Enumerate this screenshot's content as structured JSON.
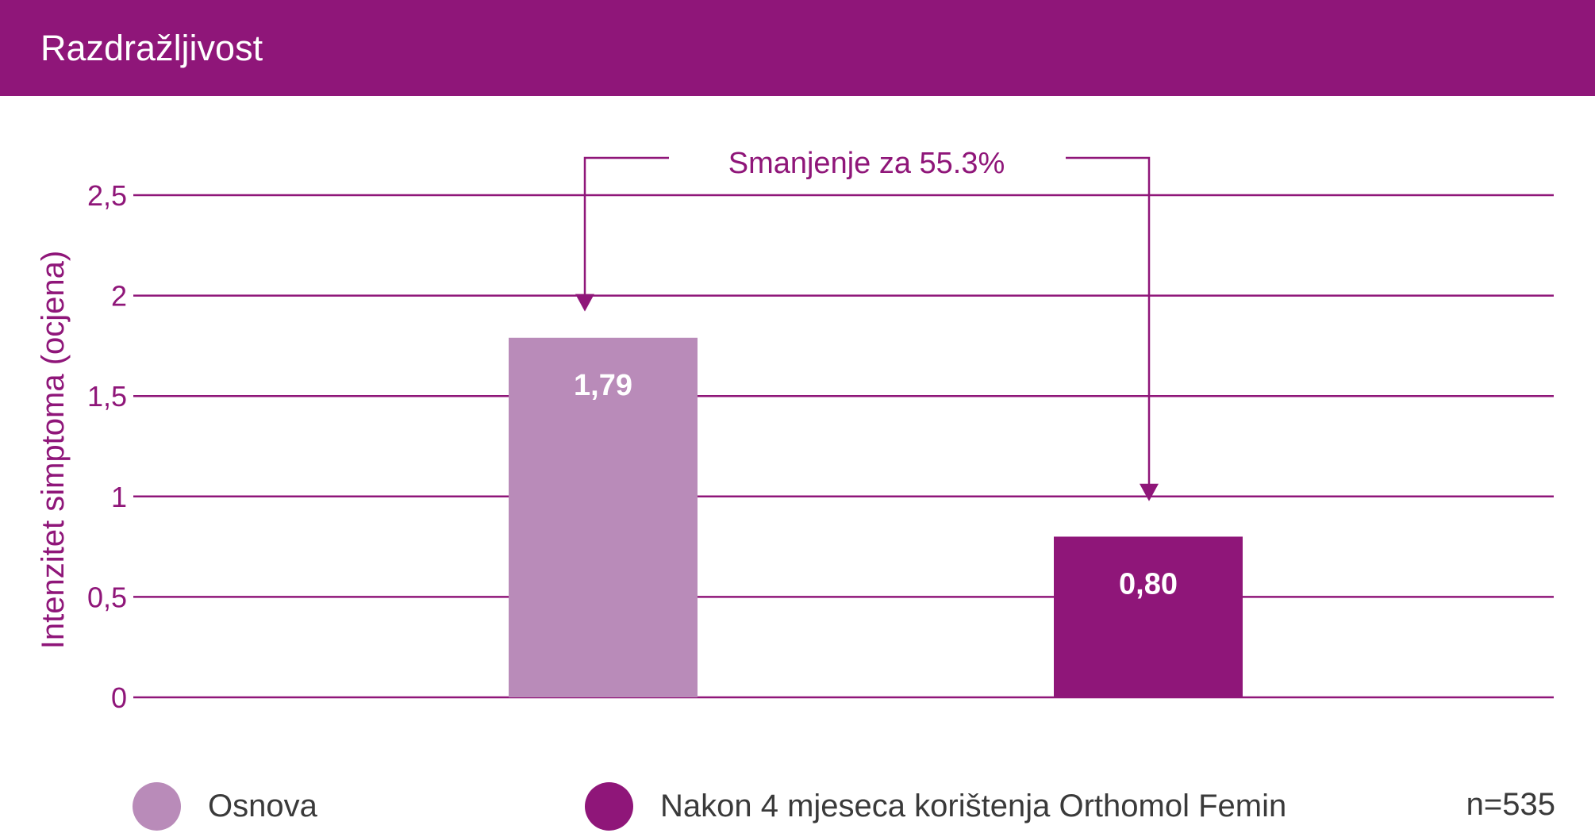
{
  "header": {
    "title": "Razdražljivost"
  },
  "colors": {
    "header_bg": "#8f1679",
    "accent": "#8f1679",
    "baseline_bar": "#b98bb9",
    "after_bar": "#8f1679",
    "gridline": "#8f1679"
  },
  "chart_data": {
    "type": "bar",
    "title": "Razdražljivost",
    "ylabel": "Intenzitet simptoma (ocjena)",
    "xlabel": "",
    "ylim": [
      0,
      2.5
    ],
    "yticks": [
      {
        "value": 0,
        "label": "0"
      },
      {
        "value": 0.5,
        "label": "0,5"
      },
      {
        "value": 1,
        "label": "1"
      },
      {
        "value": 1.5,
        "label": "1,5"
      },
      {
        "value": 2,
        "label": "2"
      },
      {
        "value": 2.5,
        "label": "2,5"
      }
    ],
    "grid": true,
    "bars": [
      {
        "name": "Osnova",
        "value": 1.79,
        "label": "1,79",
        "color": "#b98bb9"
      },
      {
        "name": "Nakon 4 mjeseca korištenja Orthomol Femin",
        "value": 0.8,
        "label": "0,80",
        "color": "#8f1679"
      }
    ],
    "annotation": "Smanjenje za 55.3%",
    "legend_placement": "bottom"
  },
  "legend": {
    "items": [
      {
        "label": "Osnova",
        "color": "#b98bb9"
      },
      {
        "label": "Nakon 4 mjeseca korištenja Orthomol Femin",
        "color": "#8f1679"
      }
    ],
    "sample_size": "n=535"
  }
}
